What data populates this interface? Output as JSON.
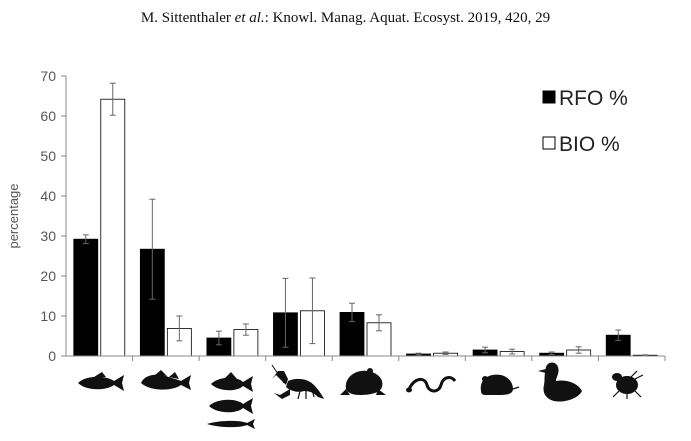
{
  "header": {
    "authors": "M. Sittenthaler",
    "etal": "et al.",
    "citation": ": Knowl. Manag. Aquat. Ecosyst. 2019, 420, 29"
  },
  "chart_data": {
    "type": "bar",
    "ylabel": "percentage",
    "ylim": [
      0,
      70
    ],
    "yticks": [
      0,
      10,
      20,
      30,
      40,
      50,
      60,
      70
    ],
    "grid": false,
    "legend_position": "top-right",
    "categories": [
      "fish-1",
      "fish-2",
      "fish-group",
      "crayfish",
      "frog",
      "snake",
      "rodent",
      "duck",
      "beetle"
    ],
    "series": [
      {
        "name": "RFO %",
        "color": "#000000",
        "values": [
          29.2,
          26.7,
          4.5,
          10.8,
          10.9,
          0.5,
          1.5,
          0.7,
          5.2
        ],
        "err": [
          1.1,
          12.5,
          1.7,
          8.6,
          2.3,
          0.2,
          0.7,
          0.3,
          1.3
        ]
      },
      {
        "name": "BIO %",
        "color": "#ffffff",
        "values": [
          64.2,
          6.9,
          6.6,
          11.3,
          8.3,
          0.7,
          1.1,
          1.5,
          0.2
        ],
        "err": [
          4.0,
          3.1,
          1.4,
          8.2,
          2.0,
          0.3,
          0.6,
          0.8,
          0.1
        ]
      }
    ]
  },
  "icons": [
    "fish-icon",
    "goby-icon",
    "fish-group-icon",
    "crayfish-icon",
    "frog-icon",
    "snake-icon",
    "rodent-icon",
    "duck-icon",
    "beetle-icon"
  ]
}
